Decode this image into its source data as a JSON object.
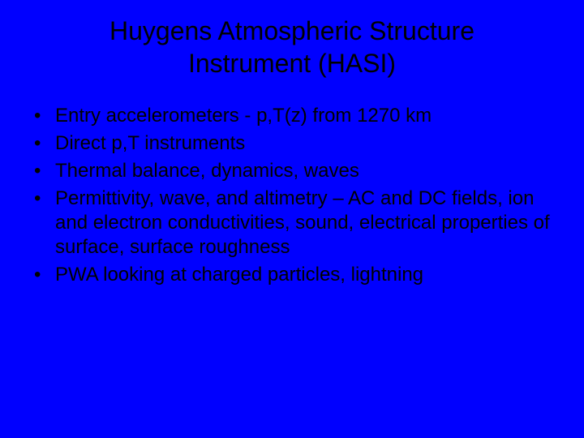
{
  "background_color": "#0000ff",
  "text_color": "#000000",
  "title": {
    "line1": "Huygens Atmospheric Structure",
    "line2": "Instrument (HASI)",
    "fontsize": 32
  },
  "bullets": {
    "fontsize": 24,
    "items": [
      "Entry accelerometers - p,T(z) from 1270 km",
      "Direct p,T instruments",
      "Thermal balance, dynamics, waves",
      "Permittivity, wave, and altimetry – AC and DC fields, ion and electron conductivities, sound, electrical properties of surface, surface roughness",
      "PWA looking at charged particles, lightning"
    ]
  }
}
